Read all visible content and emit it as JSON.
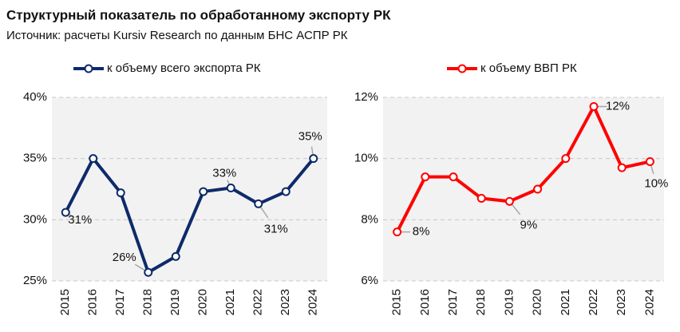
{
  "header": {
    "title": "Структурный показатель по обработанному экспорту РК",
    "subtitle": "Источник: расчеты Kursiv Research по данным БНС АСПР РК"
  },
  "chart_data": [
    {
      "type": "line",
      "categories": [
        "2015",
        "2016",
        "2017",
        "2018",
        "2019",
        "2020",
        "2021",
        "2022",
        "2023",
        "2024"
      ],
      "series": [
        {
          "name": "к объему всего экспорта РК",
          "color": "#0d2a6b",
          "values": [
            30.6,
            35.0,
            32.2,
            25.7,
            27.0,
            32.3,
            32.6,
            31.3,
            32.3,
            35.0
          ],
          "value_labels": [
            "31%",
            null,
            null,
            "26%",
            null,
            null,
            "33%",
            "31%",
            null,
            "35%"
          ]
        }
      ],
      "ylim": [
        25,
        40
      ],
      "yticks": [
        {
          "value": 25,
          "label": "25%"
        },
        {
          "value": 30,
          "label": "30%"
        },
        {
          "value": 35,
          "label": "35%"
        },
        {
          "value": 40,
          "label": "40%"
        }
      ],
      "grid": true
    },
    {
      "type": "line",
      "categories": [
        "2015",
        "2016",
        "2017",
        "2018",
        "2019",
        "2020",
        "2021",
        "2022",
        "2023",
        "2024"
      ],
      "series": [
        {
          "name": "к объему ВВП РК",
          "color": "#ff0000",
          "values": [
            7.6,
            9.4,
            9.4,
            8.7,
            8.6,
            9.0,
            10.0,
            11.7,
            9.7,
            9.9
          ],
          "value_labels": [
            "8%",
            null,
            null,
            null,
            "9%",
            null,
            null,
            "12%",
            null,
            "10%"
          ]
        }
      ],
      "ylim": [
        6,
        12
      ],
      "yticks": [
        {
          "value": 6,
          "label": "6%"
        },
        {
          "value": 8,
          "label": "8%"
        },
        {
          "value": 10,
          "label": "10%"
        },
        {
          "value": 12,
          "label": "12%"
        }
      ],
      "grid": true
    }
  ]
}
